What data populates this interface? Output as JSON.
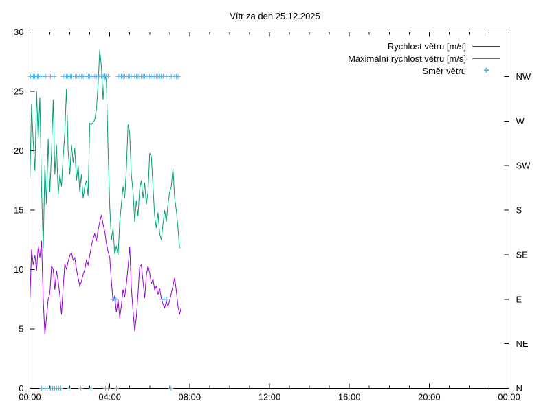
{
  "title": "Vítr za den 25.12.2025",
  "legend": [
    {
      "label": "Rychlost větru [m/s]",
      "type": "line",
      "color": "#9400d3"
    },
    {
      "label": "Maximální rychlost větru [m/s]",
      "type": "line",
      "color": "#009e73"
    },
    {
      "label": "Směr větru",
      "type": "marker",
      "marker": "+",
      "color": "#56b4e9"
    }
  ],
  "chart_data": {
    "type": "line",
    "title": "Vítr za den 25.12.2025",
    "background": "#ffffff",
    "border_color": "#000000",
    "grid": false,
    "legend_position": "top-right-inside",
    "x_axis": {
      "unit": "time",
      "range_hours": [
        0,
        24
      ],
      "minor_step_hours": 1,
      "major_hours": [
        0,
        4,
        8,
        12,
        16,
        20,
        24
      ],
      "major_labels": [
        "00:00",
        "04:00",
        "08:00",
        "12:00",
        "16:00",
        "20:00",
        "00:00"
      ]
    },
    "y_left": {
      "label": "",
      "min": 0,
      "max": 30,
      "ticks": [
        0,
        5,
        10,
        15,
        20,
        25,
        30
      ]
    },
    "y_right": {
      "label": "",
      "labels": [
        "N",
        "NE",
        "E",
        "SE",
        "S",
        "SW",
        "W",
        "NW"
      ],
      "values": [
        0,
        3.75,
        7.5,
        11.25,
        15,
        18.75,
        22.5,
        26.25
      ]
    },
    "series": [
      {
        "name": "Rychlost větru [m/s]",
        "color": "#9400d3",
        "points": [
          [
            0,
            7.3
          ],
          [
            0.083,
            11.7
          ],
          [
            0.167,
            10.4
          ],
          [
            0.25,
            11.2
          ],
          [
            0.333,
            9.9
          ],
          [
            0.417,
            12.0
          ],
          [
            0.5,
            11.0
          ],
          [
            0.583,
            12.4
          ],
          [
            0.667,
            7.5
          ],
          [
            0.75,
            4.5
          ],
          [
            0.833,
            6.0
          ],
          [
            0.917,
            7.5
          ],
          [
            1.0,
            8.0
          ],
          [
            1.083,
            10.3
          ],
          [
            1.167,
            10.0
          ],
          [
            1.25,
            8.3
          ],
          [
            1.333,
            9.9
          ],
          [
            1.417,
            9.0
          ],
          [
            1.5,
            7.8
          ],
          [
            1.583,
            6.2
          ],
          [
            1.667,
            8.5
          ],
          [
            1.75,
            10.5
          ],
          [
            1.833,
            10.0
          ],
          [
            1.917,
            10.7
          ],
          [
            2.0,
            11.2
          ],
          [
            2.083,
            11.4
          ],
          [
            2.167,
            10.8
          ],
          [
            2.25,
            11.0
          ],
          [
            2.333,
            10.0
          ],
          [
            2.417,
            9.3
          ],
          [
            2.5,
            8.6
          ],
          [
            2.583,
            9.0
          ],
          [
            2.667,
            9.6
          ],
          [
            2.75,
            10.0
          ],
          [
            2.833,
            10.8
          ],
          [
            2.917,
            10.4
          ],
          [
            3.0,
            11.2
          ],
          [
            3.083,
            12.0
          ],
          [
            3.167,
            12.6
          ],
          [
            3.25,
            13.0
          ],
          [
            3.333,
            12.4
          ],
          [
            3.417,
            13.3
          ],
          [
            3.5,
            14.0
          ],
          [
            3.583,
            14.6
          ],
          [
            3.667,
            13.8
          ],
          [
            3.75,
            13.2
          ],
          [
            3.833,
            12.2
          ],
          [
            3.917,
            11.5
          ],
          [
            4.0,
            11.0
          ],
          [
            4.083,
            9.0
          ],
          [
            4.167,
            7.3
          ],
          [
            4.25,
            7.8
          ],
          [
            4.333,
            6.4
          ],
          [
            4.417,
            7.5
          ],
          [
            4.5,
            5.9
          ],
          [
            4.583,
            7.0
          ],
          [
            4.667,
            8.3
          ],
          [
            4.75,
            7.7
          ],
          [
            4.833,
            8.8
          ],
          [
            4.917,
            10.2
          ],
          [
            5.0,
            11.9
          ],
          [
            5.083,
            8.5
          ],
          [
            5.167,
            6.5
          ],
          [
            5.25,
            4.8
          ],
          [
            5.333,
            6.0
          ],
          [
            5.417,
            8.0
          ],
          [
            5.5,
            10.2
          ],
          [
            5.583,
            10.4
          ],
          [
            5.667,
            9.0
          ],
          [
            5.75,
            7.6
          ],
          [
            5.833,
            9.5
          ],
          [
            5.917,
            10.3
          ],
          [
            6.0,
            9.7
          ],
          [
            6.083,
            8.8
          ],
          [
            6.167,
            9.2
          ],
          [
            6.25,
            8.3
          ],
          [
            6.333,
            8.6
          ],
          [
            6.417,
            7.9
          ],
          [
            6.5,
            8.4
          ],
          [
            6.583,
            7.6
          ],
          [
            6.667,
            7.1
          ],
          [
            6.75,
            6.8
          ],
          [
            6.833,
            7.3
          ],
          [
            6.917,
            6.9
          ],
          [
            7.0,
            7.4
          ],
          [
            7.083,
            8.0
          ],
          [
            7.167,
            8.6
          ],
          [
            7.25,
            9.3
          ],
          [
            7.333,
            8.2
          ],
          [
            7.417,
            6.9
          ],
          [
            7.5,
            6.2
          ],
          [
            7.583,
            6.9
          ]
        ]
      },
      {
        "name": "Maximální rychlost větru [m/s]",
        "color": "#009e73",
        "points": [
          [
            0,
            17.5
          ],
          [
            0.083,
            23.9
          ],
          [
            0.167,
            20.8
          ],
          [
            0.25,
            18.3
          ],
          [
            0.333,
            25.0
          ],
          [
            0.417,
            21.0
          ],
          [
            0.5,
            24.5
          ],
          [
            0.583,
            17.0
          ],
          [
            0.667,
            11.8
          ],
          [
            0.75,
            18.8
          ],
          [
            0.833,
            15.5
          ],
          [
            0.917,
            21.0
          ],
          [
            1.0,
            16.5
          ],
          [
            1.083,
            20.0
          ],
          [
            1.167,
            24.3
          ],
          [
            1.25,
            18.0
          ],
          [
            1.333,
            20.5
          ],
          [
            1.417,
            16.3
          ],
          [
            1.5,
            18.0
          ],
          [
            1.583,
            17.0
          ],
          [
            1.667,
            19.5
          ],
          [
            1.75,
            21.5
          ],
          [
            1.833,
            25.2
          ],
          [
            1.917,
            20.0
          ],
          [
            2.0,
            18.0
          ],
          [
            2.083,
            20.5
          ],
          [
            2.167,
            19.0
          ],
          [
            2.25,
            20.2
          ],
          [
            2.333,
            17.5
          ],
          [
            2.417,
            18.8
          ],
          [
            2.5,
            16.5
          ],
          [
            2.583,
            18.0
          ],
          [
            2.667,
            16.0
          ],
          [
            2.75,
            17.0
          ],
          [
            2.833,
            17.5
          ],
          [
            2.917,
            16.2
          ],
          [
            3.0,
            22.3
          ],
          [
            3.083,
            22.2
          ],
          [
            3.167,
            22.4
          ],
          [
            3.25,
            22.6
          ],
          [
            3.333,
            23.5
          ],
          [
            3.417,
            25.5
          ],
          [
            3.5,
            28.5
          ],
          [
            3.583,
            27.0
          ],
          [
            3.667,
            24.3
          ],
          [
            3.75,
            26.5
          ],
          [
            3.833,
            25.8
          ],
          [
            3.917,
            20.0
          ],
          [
            4.0,
            15.3
          ],
          [
            4.083,
            12.5
          ],
          [
            4.167,
            13.5
          ],
          [
            4.25,
            11.3
          ],
          [
            4.333,
            12.0
          ],
          [
            4.417,
            11.2
          ],
          [
            4.5,
            14.0
          ],
          [
            4.583,
            15.5
          ],
          [
            4.667,
            17.0
          ],
          [
            4.75,
            16.0
          ],
          [
            4.833,
            18.5
          ],
          [
            4.917,
            22.2
          ],
          [
            5.0,
            21.5
          ],
          [
            5.083,
            18.0
          ],
          [
            5.167,
            16.5
          ],
          [
            5.25,
            14.0
          ],
          [
            5.333,
            15.8
          ],
          [
            5.417,
            14.5
          ],
          [
            5.5,
            16.8
          ],
          [
            5.583,
            17.5
          ],
          [
            5.667,
            16.0
          ],
          [
            5.75,
            17.3
          ],
          [
            5.833,
            15.5
          ],
          [
            5.917,
            16.5
          ],
          [
            6.0,
            19.8
          ],
          [
            6.083,
            19.5
          ],
          [
            6.167,
            17.0
          ],
          [
            6.25,
            14.5
          ],
          [
            6.333,
            13.5
          ],
          [
            6.417,
            14.8
          ],
          [
            6.5,
            13.0
          ],
          [
            6.583,
            12.5
          ],
          [
            6.667,
            13.8
          ],
          [
            6.75,
            15.0
          ],
          [
            6.833,
            14.0
          ],
          [
            6.917,
            15.5
          ],
          [
            7.0,
            16.5
          ],
          [
            7.083,
            17.0
          ],
          [
            7.167,
            18.5
          ],
          [
            7.25,
            16.0
          ],
          [
            7.333,
            15.0
          ],
          [
            7.417,
            13.5
          ],
          [
            7.5,
            11.8
          ]
        ]
      }
    ],
    "direction_markers": {
      "name": "Směr větru",
      "color": "#56b4e9",
      "marker": "+",
      "groups": [
        {
          "dir": "NW",
          "value": 26.25,
          "times": [
            0.03,
            0.1,
            0.17,
            0.24,
            0.31,
            0.38,
            0.45,
            0.55,
            0.65,
            0.78,
            1.03,
            1.22,
            1.67,
            1.75,
            1.83,
            1.9,
            1.97,
            2.03,
            2.1,
            2.2,
            2.28,
            2.35,
            2.42,
            2.5,
            2.58,
            2.67,
            2.75,
            2.85,
            2.93,
            3.0,
            3.08,
            3.17,
            3.25,
            3.33,
            3.42,
            3.5,
            3.58,
            3.67,
            3.75,
            3.83,
            3.92,
            4.42,
            4.5,
            4.58,
            4.67,
            4.75,
            4.83,
            4.92,
            5.0,
            5.08,
            5.17,
            5.25,
            5.33,
            5.42,
            5.5,
            5.58,
            5.67,
            5.75,
            5.83,
            5.92,
            6.0,
            6.08,
            6.17,
            6.25,
            6.33,
            6.42,
            6.5,
            6.58,
            6.67,
            6.83,
            6.92,
            7.08,
            7.17,
            7.25,
            7.33,
            7.42
          ]
        },
        {
          "dir": "E",
          "value": 7.5,
          "times": [
            4.14,
            4.25,
            4.31,
            6.62,
            6.72,
            6.86
          ]
        },
        {
          "dir": "N",
          "value": 0,
          "times": [
            0.59,
            0.76,
            0.86,
            0.97,
            1.03,
            1.14,
            1.24,
            1.34,
            1.45,
            1.55,
            1.97,
            2.55,
            3.07,
            3.79,
            3.93,
            4.34,
            7.07
          ]
        }
      ]
    }
  }
}
